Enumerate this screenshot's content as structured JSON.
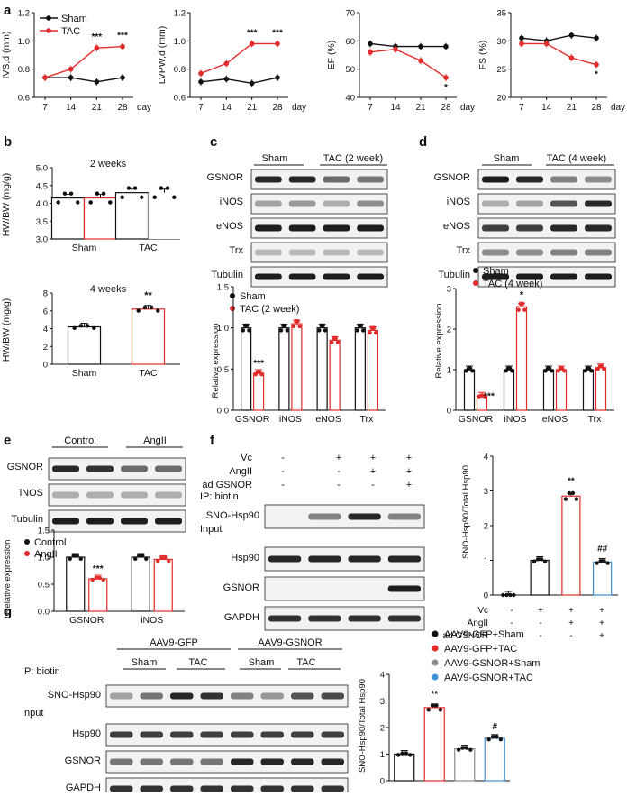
{
  "colors": {
    "sham": "#111111",
    "tac": "#e32b2b",
    "gsnor_sham": "#8a8a8a",
    "gsnor_tac": "#3d8fd6"
  },
  "panel_letters": [
    "a",
    "b",
    "c",
    "d",
    "e",
    "f",
    "g"
  ],
  "panel_a": {
    "legend": [
      "Sham",
      "TAC"
    ],
    "xlabel_unit": "day",
    "charts": [
      {
        "ylabel": "IVS,d (mm)",
        "yticks": [
          "0.6",
          "0.8",
          "1.0",
          "1.2"
        ],
        "stars": [
          "***",
          "***"
        ]
      },
      {
        "ylabel": "LVPW,d (mm)",
        "yticks": [
          "0.6",
          "0.8",
          "1.0",
          "1.2"
        ],
        "stars": [
          "***",
          "***"
        ]
      },
      {
        "ylabel": "EF (%)",
        "yticks": [
          "40",
          "50",
          "60",
          "70"
        ],
        "stars": [
          "*"
        ]
      },
      {
        "ylabel": "FS (%)",
        "yticks": [
          "20",
          "25",
          "30",
          "35"
        ],
        "stars": [
          "*"
        ]
      }
    ]
  },
  "panel_b": {
    "ylabel": "HW/BW (mg/g)",
    "top_title": "2 weeks",
    "bottom_title": "4 weeks",
    "top_yticks": [
      "3.0",
      "3.5",
      "4.0",
      "4.5",
      "5.0"
    ],
    "bottom_yticks": [
      "0",
      "2",
      "4",
      "6",
      "8"
    ],
    "groups": [
      "Sham",
      "TAC"
    ],
    "bottom_star": "**"
  },
  "panel_c": {
    "header": [
      "Sham",
      "TAC (2 week)"
    ],
    "rows": [
      "GSNOR",
      "iNOS",
      "eNOS",
      "Trx",
      "Tubulin"
    ],
    "legend": [
      "Sham",
      "TAC (2 week)"
    ],
    "ylabel": "Relative expression",
    "yticks": [
      "0.0",
      "0.5",
      "1.0",
      "1.5"
    ],
    "groups": [
      "GSNOR",
      "iNOS",
      "eNOS",
      "Trx"
    ],
    "star": "***"
  },
  "panel_d": {
    "header": [
      "Sham",
      "TAC (4 week)"
    ],
    "rows": [
      "GSNOR",
      "iNOS",
      "eNOS",
      "Trx",
      "Tubulin"
    ],
    "legend": [
      "Sham",
      "TAC  (4 week)"
    ],
    "ylabel": "Relative expression",
    "yticks": [
      "0",
      "1",
      "2",
      "3"
    ],
    "groups": [
      "GSNOR",
      "iNOS",
      "eNOS",
      "Trx"
    ],
    "stars": [
      "***",
      "*"
    ]
  },
  "panel_e": {
    "header": [
      "Control",
      "AngII"
    ],
    "rows": [
      "GSNOR",
      "iNOS",
      "Tubulin"
    ],
    "legend": [
      "Control",
      "AngII"
    ],
    "ylabel": "Relative expression",
    "yticks": [
      "0.0",
      "0.5",
      "1.0",
      "1.5"
    ],
    "groups": [
      "GSNOR",
      "iNOS"
    ],
    "star": "***"
  },
  "panel_f": {
    "conditions": [
      {
        "label": "Vc",
        "values": [
          "-",
          "+",
          "+",
          "+"
        ]
      },
      {
        "label": "AngII",
        "values": [
          "-",
          "-",
          "+",
          "+"
        ]
      },
      {
        "label": "ad GSNOR",
        "values": [
          "-",
          "-",
          "-",
          "+"
        ]
      }
    ],
    "ip_label": "IP: biotin",
    "input_label": "Input",
    "rows": [
      "SNO-Hsp90",
      "Hsp90",
      "GSNOR",
      "GAPDH"
    ],
    "ylabel": "SNO-Hsp90/Total Hsp90",
    "yticks": [
      "0",
      "1",
      "2",
      "3",
      "4"
    ],
    "stars": [
      "**",
      "##"
    ]
  },
  "panel_g": {
    "header": [
      "AAV9-GFP",
      "AAV9-GSNOR"
    ],
    "subheader": [
      "Sham",
      "TAC",
      "Sham",
      "TAC"
    ],
    "ip_label": "IP: biotin",
    "input_label": "Input",
    "rows": [
      "SNO-Hsp90",
      "Hsp90",
      "GSNOR",
      "GAPDH"
    ],
    "legend": [
      "AAV9-GFP+Sham",
      "AAV9-GFP+TAC",
      "AAV9-GSNOR+Sham",
      "AAV9-GSNOR+TAC"
    ],
    "ylabel": "SNO-Hsp90/Total Hsp90",
    "yticks": [
      "0",
      "1",
      "2",
      "3",
      "4"
    ],
    "stars": [
      "**",
      "#"
    ]
  },
  "chart_data": [
    {
      "type": "line",
      "title": "",
      "xlabel": "day",
      "ylabel": "IVS,d (mm)",
      "x": [
        7,
        14,
        21,
        28
      ],
      "ylim": [
        0.6,
        1.2
      ],
      "series": [
        {
          "name": "Sham",
          "values": [
            0.74,
            0.74,
            0.71,
            0.74
          ]
        },
        {
          "name": "TAC",
          "values": [
            0.74,
            0.8,
            0.95,
            0.96
          ]
        }
      ]
    },
    {
      "type": "line",
      "title": "",
      "xlabel": "day",
      "ylabel": "LVPW,d (mm)",
      "x": [
        7,
        14,
        21,
        28
      ],
      "ylim": [
        0.6,
        1.2
      ],
      "series": [
        {
          "name": "Sham",
          "values": [
            0.71,
            0.73,
            0.7,
            0.74
          ]
        },
        {
          "name": "TAC",
          "values": [
            0.77,
            0.84,
            0.98,
            0.98
          ]
        }
      ]
    },
    {
      "type": "line",
      "title": "",
      "xlabel": "day",
      "ylabel": "EF (%)",
      "x": [
        7,
        14,
        21,
        28
      ],
      "ylim": [
        40,
        70
      ],
      "series": [
        {
          "name": "Sham",
          "values": [
            59,
            58,
            58,
            58
          ]
        },
        {
          "name": "TAC",
          "values": [
            56,
            57,
            53,
            47
          ]
        }
      ]
    },
    {
      "type": "line",
      "title": "",
      "xlabel": "day",
      "ylabel": "FS (%)",
      "x": [
        7,
        14,
        21,
        28
      ],
      "ylim": [
        20,
        35
      ],
      "series": [
        {
          "name": "Sham",
          "values": [
            30.5,
            30,
            31,
            30.5
          ]
        },
        {
          "name": "TAC",
          "values": [
            29.5,
            29.5,
            27,
            25.8
          ]
        }
      ]
    },
    {
      "type": "bar",
      "title": "2 weeks",
      "ylabel": "HW/BW (mg/g)",
      "categories": [
        "Sham",
        "TAC"
      ],
      "values": [
        4.15,
        4.3
      ],
      "ylim": [
        3.0,
        5.0
      ]
    },
    {
      "type": "bar",
      "title": "4 weeks",
      "ylabel": "HW/BW (mg/g)",
      "categories": [
        "Sham",
        "TAC"
      ],
      "values": [
        4.2,
        6.2
      ],
      "ylim": [
        0,
        8
      ]
    },
    {
      "type": "bar",
      "title": "",
      "ylabel": "Relative expression",
      "categories": [
        "GSNOR",
        "iNOS",
        "eNOS",
        "Trx"
      ],
      "ylim": [
        0,
        1.5
      ],
      "series": [
        {
          "name": "Sham",
          "values": [
            1.0,
            1.0,
            1.0,
            1.0
          ]
        },
        {
          "name": "TAC (2 week)",
          "values": [
            0.45,
            1.05,
            0.85,
            0.97
          ]
        }
      ]
    },
    {
      "type": "bar",
      "title": "",
      "ylabel": "Relative expression",
      "categories": [
        "GSNOR",
        "iNOS",
        "eNOS",
        "Trx"
      ],
      "ylim": [
        0,
        3
      ],
      "series": [
        {
          "name": "Sham",
          "values": [
            1.0,
            1.0,
            1.0,
            1.0
          ]
        },
        {
          "name": "TAC  (4 week)",
          "values": [
            0.35,
            2.55,
            1.0,
            1.05
          ]
        }
      ]
    },
    {
      "type": "bar",
      "title": "",
      "ylabel": "Relative expression",
      "categories": [
        "GSNOR",
        "iNOS"
      ],
      "ylim": [
        0,
        1.5
      ],
      "series": [
        {
          "name": "Control",
          "values": [
            1.0,
            1.0
          ]
        },
        {
          "name": "AngII",
          "values": [
            0.6,
            0.96
          ]
        }
      ]
    },
    {
      "type": "bar",
      "title": "",
      "ylabel": "SNO-Hsp90/Total Hsp90",
      "categories": [
        "1",
        "2",
        "3",
        "4"
      ],
      "values": [
        0,
        1.0,
        2.85,
        0.95
      ],
      "ylim": [
        0,
        4
      ]
    },
    {
      "type": "bar",
      "title": "",
      "ylabel": "SNO-Hsp90/Total Hsp90",
      "categories": [
        "AAV9-GFP+Sham",
        "AAV9-GFP+TAC",
        "AAV9-GSNOR+Sham",
        "AAV9-GSNOR+TAC"
      ],
      "values": [
        1.0,
        2.75,
        1.2,
        1.6
      ],
      "ylim": [
        0,
        4
      ]
    }
  ]
}
